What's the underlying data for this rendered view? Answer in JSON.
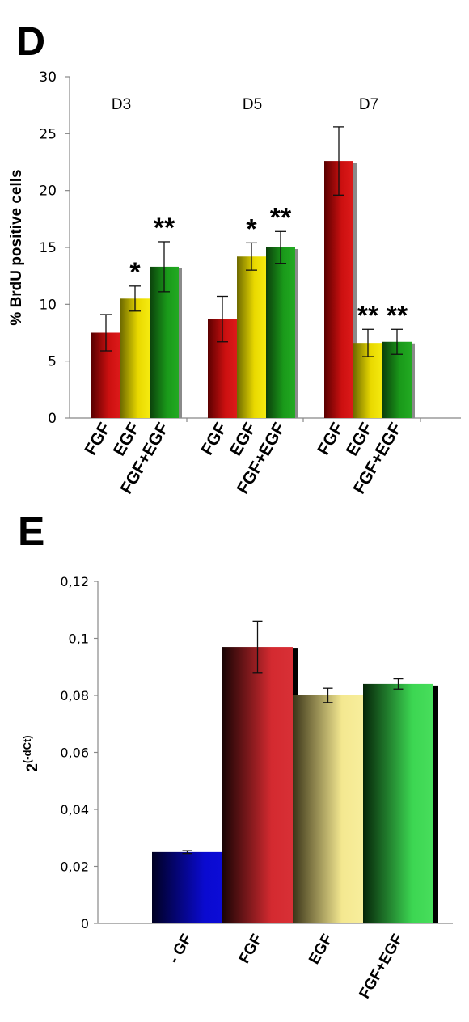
{
  "panels": {
    "d": {
      "letter": "D"
    },
    "e": {
      "letter": "E"
    }
  },
  "chart_data": [
    {
      "type": "bar",
      "ylabel": "% BrdU positive cells",
      "ylim": [
        0,
        30
      ],
      "yticks": [
        "0",
        "5",
        "10",
        "15",
        "20",
        "25",
        "30"
      ],
      "groups": [
        "D3",
        "D5",
        "D7"
      ],
      "categories": [
        "FGF",
        "EGF",
        "FGF+EGF"
      ],
      "colors": [
        "#cc1111",
        "#e8d800",
        "#1c9a1c"
      ],
      "series": [
        {
          "values": [
            7.5,
            8.7,
            22.6
          ],
          "errors": [
            1.6,
            2.0,
            3.0
          ],
          "sig": [
            "",
            "",
            ""
          ]
        },
        {
          "values": [
            10.5,
            14.2,
            6.6
          ],
          "errors": [
            1.1,
            1.2,
            1.2
          ],
          "sig": [
            "*",
            "*",
            "**"
          ]
        },
        {
          "values": [
            13.3,
            15.0,
            6.7
          ],
          "errors": [
            2.2,
            1.4,
            1.1
          ],
          "sig": [
            "**",
            "**",
            "**"
          ]
        }
      ]
    },
    {
      "type": "bar",
      "ylabel": "2(-dCt)",
      "ylabel_base": "2",
      "ylabel_sup": "(-dCt)",
      "ylim": [
        0,
        0.12
      ],
      "yticks": [
        "0",
        "0,02",
        "0,04",
        "0,06",
        "0,08",
        "0,1",
        "0,12"
      ],
      "categories": [
        "- GF",
        "FGF",
        "EGF",
        "FGF+EGF"
      ],
      "values": [
        0.025,
        0.097,
        0.08,
        0.084
      ],
      "errors": [
        0.0005,
        0.009,
        0.0025,
        0.0018
      ],
      "colors": [
        "#0b0bd0",
        "#d42a30",
        "#f6ea8e",
        "#3fd854"
      ]
    }
  ]
}
